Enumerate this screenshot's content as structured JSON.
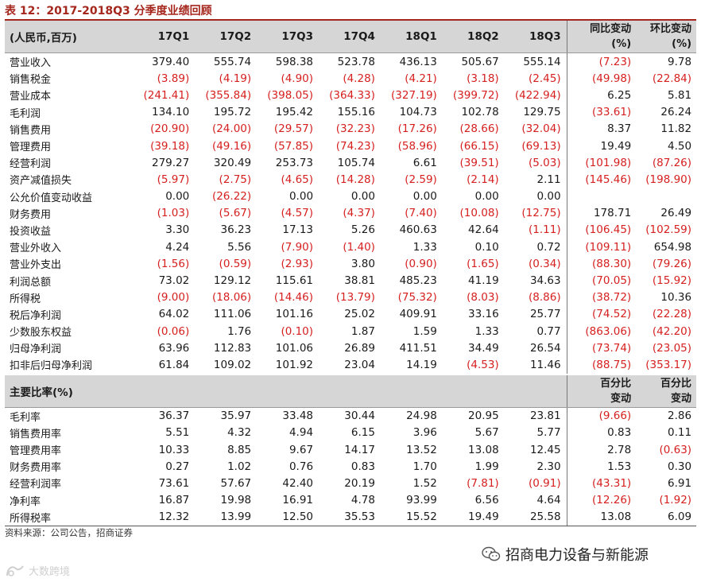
{
  "title": "表 12：2017-2018Q3 分季度业绩回顾",
  "header": {
    "label": "(人民币,百万)",
    "quarters": [
      "17Q1",
      "17Q2",
      "17Q3",
      "17Q4",
      "18Q1",
      "18Q2",
      "18Q3"
    ],
    "yoy": "同比变动(%)",
    "qoq": "环比变动(%)"
  },
  "rows": [
    {
      "label": "营业收入",
      "v": [
        "379.40",
        "555.74",
        "598.38",
        "523.78",
        "436.13",
        "505.67",
        "555.14"
      ],
      "yoy": "(7.23)",
      "qoq": "9.78"
    },
    {
      "label": "销售税金",
      "v": [
        "(3.89)",
        "(4.19)",
        "(4.90)",
        "(4.28)",
        "(4.21)",
        "(3.18)",
        "(2.45)"
      ],
      "yoy": "(49.98)",
      "qoq": "(22.84)"
    },
    {
      "label": "营业成本",
      "v": [
        "(241.41)",
        "(355.84)",
        "(398.05)",
        "(364.33)",
        "(327.19)",
        "(399.72)",
        "(422.94)"
      ],
      "yoy": "6.25",
      "qoq": "5.81"
    },
    {
      "label": "毛利润",
      "v": [
        "134.10",
        "195.72",
        "195.42",
        "155.16",
        "104.73",
        "102.78",
        "129.75"
      ],
      "yoy": "(33.61)",
      "qoq": "26.24"
    },
    {
      "label": "销售费用",
      "v": [
        "(20.90)",
        "(24.00)",
        "(29.57)",
        "(32.23)",
        "(17.26)",
        "(28.66)",
        "(32.04)"
      ],
      "yoy": "8.37",
      "qoq": "11.82"
    },
    {
      "label": "管理费用",
      "v": [
        "(39.18)",
        "(49.16)",
        "(57.85)",
        "(74.23)",
        "(58.96)",
        "(66.15)",
        "(69.13)"
      ],
      "yoy": "19.49",
      "qoq": "4.50"
    },
    {
      "label": "经营利润",
      "v": [
        "279.27",
        "320.49",
        "253.73",
        "105.74",
        "6.61",
        "(39.51)",
        "(5.03)"
      ],
      "yoy": "(101.98)",
      "qoq": "(87.26)"
    },
    {
      "label": "资产减值损失",
      "v": [
        "(5.97)",
        "(2.75)",
        "(4.65)",
        "(14.28)",
        "(2.59)",
        "(2.14)",
        "2.11"
      ],
      "yoy": "(145.46)",
      "qoq": "(198.90)"
    },
    {
      "label": "公允价值变动收益",
      "v": [
        "0.00",
        "(26.22)",
        "0.00",
        "0.00",
        "0.00",
        "0.00",
        "0.00"
      ],
      "yoy": "",
      "qoq": ""
    },
    {
      "label": "财务费用",
      "v": [
        "(1.03)",
        "(5.67)",
        "(4.57)",
        "(4.37)",
        "(7.40)",
        "(10.08)",
        "(12.75)"
      ],
      "yoy": "178.71",
      "qoq": "26.49"
    },
    {
      "label": "投资收益",
      "v": [
        "3.30",
        "36.23",
        "17.13",
        "5.26",
        "460.63",
        "42.64",
        "(1.11)"
      ],
      "yoy": "(106.45)",
      "qoq": "(102.59)"
    },
    {
      "label": "营业外收入",
      "v": [
        "4.24",
        "5.56",
        "(7.90)",
        "(1.40)",
        "1.33",
        "0.10",
        "0.72"
      ],
      "yoy": "(109.11)",
      "qoq": "654.98"
    },
    {
      "label": "营业外支出",
      "v": [
        "(1.56)",
        "(0.59)",
        "(2.93)",
        "3.80",
        "(0.90)",
        "(1.65)",
        "(0.34)"
      ],
      "yoy": "(88.30)",
      "qoq": "(79.26)"
    },
    {
      "label": "利润总额",
      "v": [
        "73.02",
        "129.12",
        "115.61",
        "38.81",
        "485.23",
        "41.19",
        "34.63"
      ],
      "yoy": "(70.05)",
      "qoq": "(15.92)"
    },
    {
      "label": "所得税",
      "v": [
        "(9.00)",
        "(18.06)",
        "(14.46)",
        "(13.79)",
        "(75.32)",
        "(8.03)",
        "(8.86)"
      ],
      "yoy": "(38.72)",
      "qoq": "10.36"
    },
    {
      "label": "税后净利润",
      "v": [
        "64.02",
        "111.06",
        "101.16",
        "25.02",
        "409.91",
        "33.16",
        "25.77"
      ],
      "yoy": "(74.52)",
      "qoq": "(22.28)"
    },
    {
      "label": "少数股东权益",
      "v": [
        "(0.06)",
        "1.76",
        "(0.10)",
        "1.87",
        "1.59",
        "1.33",
        "0.77"
      ],
      "yoy": "(863.06)",
      "qoq": "(42.20)"
    },
    {
      "label": "归母净利润",
      "v": [
        "63.96",
        "112.83",
        "101.06",
        "26.89",
        "411.51",
        "34.49",
        "26.54"
      ],
      "yoy": "(73.74)",
      "qoq": "(23.05)"
    },
    {
      "label": "扣非后归母净利润",
      "v": [
        "61.84",
        "109.02",
        "101.92",
        "23.04",
        "14.19",
        "(4.53)",
        "11.46"
      ],
      "yoy": "(88.75)",
      "qoq": "(353.17)"
    }
  ],
  "ratios_header": {
    "label": "主要比率(%)",
    "yoy": "百分比变动",
    "qoq": "百分比变动"
  },
  "ratios": [
    {
      "label": "毛利率",
      "v": [
        "36.37",
        "35.97",
        "33.48",
        "30.44",
        "24.98",
        "20.95",
        "23.81"
      ],
      "yoy": "(9.66)",
      "qoq": "2.86"
    },
    {
      "label": "销售费用率",
      "v": [
        "5.51",
        "4.32",
        "4.94",
        "6.15",
        "3.96",
        "5.67",
        "5.77"
      ],
      "yoy": "0.83",
      "qoq": "0.11"
    },
    {
      "label": "管理费用率",
      "v": [
        "10.33",
        "8.85",
        "9.67",
        "14.17",
        "13.52",
        "13.08",
        "12.45"
      ],
      "yoy": "2.78",
      "qoq": "(0.63)"
    },
    {
      "label": "财务费用率",
      "v": [
        "0.27",
        "1.02",
        "0.76",
        "0.83",
        "1.70",
        "1.99",
        "2.30"
      ],
      "yoy": "1.53",
      "qoq": "0.30"
    },
    {
      "label": "经营利润率",
      "v": [
        "73.61",
        "57.67",
        "42.40",
        "20.19",
        "1.52",
        "(7.81)",
        "(0.91)"
      ],
      "yoy": "(43.31)",
      "qoq": "6.91"
    },
    {
      "label": "净利率",
      "v": [
        "16.87",
        "19.98",
        "16.91",
        "4.78",
        "93.99",
        "6.56",
        "4.64"
      ],
      "yoy": "(12.26)",
      "qoq": "(1.92)"
    },
    {
      "label": "所得税率",
      "v": [
        "12.32",
        "13.99",
        "12.50",
        "35.53",
        "15.52",
        "19.49",
        "25.58"
      ],
      "yoy": "13.08",
      "qoq": "6.09"
    }
  ],
  "source": "资料来源：公司公告，招商证券",
  "brand": "招商电力设备与新能源",
  "watermark": "大数跨境",
  "colors": {
    "title": "#a5261c",
    "negative": "#d61f1f",
    "header_bg": "#d6d6d6"
  }
}
